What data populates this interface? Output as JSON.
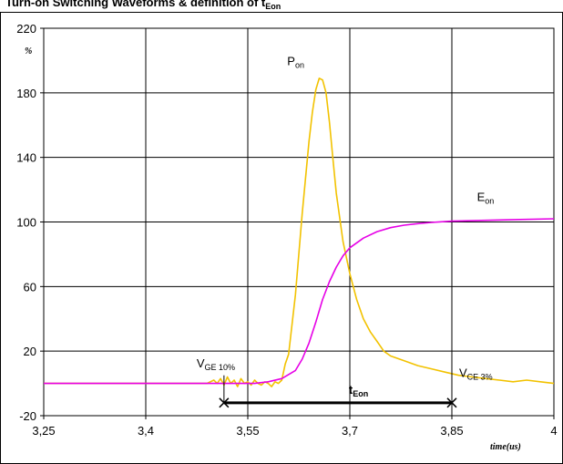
{
  "chart_data": {
    "type": "line",
    "title": "Turn-on Switching Waveforms & definition of t",
    "title_sub": "Eon",
    "ylabel": "%",
    "xlabel": "time(us)",
    "xlim": [
      3.25,
      4.0
    ],
    "ylim": [
      -20,
      220
    ],
    "x_ticks": [
      "3,25",
      "3,4",
      "3,55",
      "3,7",
      "3,85",
      "4"
    ],
    "y_ticks": [
      "-20",
      "20",
      "60",
      "100",
      "140",
      "180",
      "220"
    ],
    "grid": true,
    "series": [
      {
        "name": "P",
        "name_sub": "on",
        "color": "#f2c200",
        "x": [
          3.25,
          3.49,
          3.5,
          3.505,
          3.51,
          3.515,
          3.52,
          3.525,
          3.53,
          3.535,
          3.54,
          3.545,
          3.55,
          3.555,
          3.56,
          3.565,
          3.57,
          3.575,
          3.58,
          3.585,
          3.59,
          3.595,
          3.6,
          3.605,
          3.61,
          3.62,
          3.63,
          3.64,
          3.645,
          3.65,
          3.655,
          3.66,
          3.665,
          3.67,
          3.675,
          3.68,
          3.69,
          3.7,
          3.71,
          3.72,
          3.73,
          3.74,
          3.75,
          3.76,
          3.78,
          3.8,
          3.82,
          3.84,
          3.86,
          3.88,
          3.9,
          3.92,
          3.94,
          3.96,
          3.98,
          4.0
        ],
        "y": [
          0,
          0,
          2,
          0,
          3,
          -1,
          4,
          0,
          2,
          -2,
          3,
          0,
          1,
          -1,
          2,
          0,
          -1,
          1,
          0,
          -2,
          1,
          0,
          2,
          12,
          18,
          55,
          105,
          150,
          168,
          182,
          189,
          188,
          180,
          162,
          140,
          118,
          88,
          68,
          52,
          40,
          32,
          26,
          20,
          17,
          14,
          11,
          9,
          7,
          5,
          4,
          3,
          2,
          1,
          2,
          1,
          0
        ]
      },
      {
        "name": "E",
        "name_sub": "on",
        "color": "#e600e6",
        "x": [
          3.25,
          3.56,
          3.58,
          3.6,
          3.62,
          3.63,
          3.64,
          3.65,
          3.66,
          3.67,
          3.68,
          3.69,
          3.7,
          3.72,
          3.74,
          3.76,
          3.78,
          3.8,
          3.82,
          3.85,
          3.9,
          3.95,
          4.0
        ],
        "y": [
          0,
          0,
          1,
          3,
          8,
          15,
          25,
          38,
          52,
          63,
          72,
          79,
          84,
          90,
          94,
          96.5,
          98,
          99,
          99.7,
          100.5,
          101,
          101.5,
          102
        ]
      }
    ],
    "annotations": {
      "vge_label": "V",
      "vge_sub": "GE 10%",
      "vce_label": "V",
      "vce_sub": "CE 3%",
      "teon_label": "t",
      "teon_sub": "Eon",
      "teon_start": 3.515,
      "teon_end": 3.85,
      "teon_y": -12
    }
  }
}
